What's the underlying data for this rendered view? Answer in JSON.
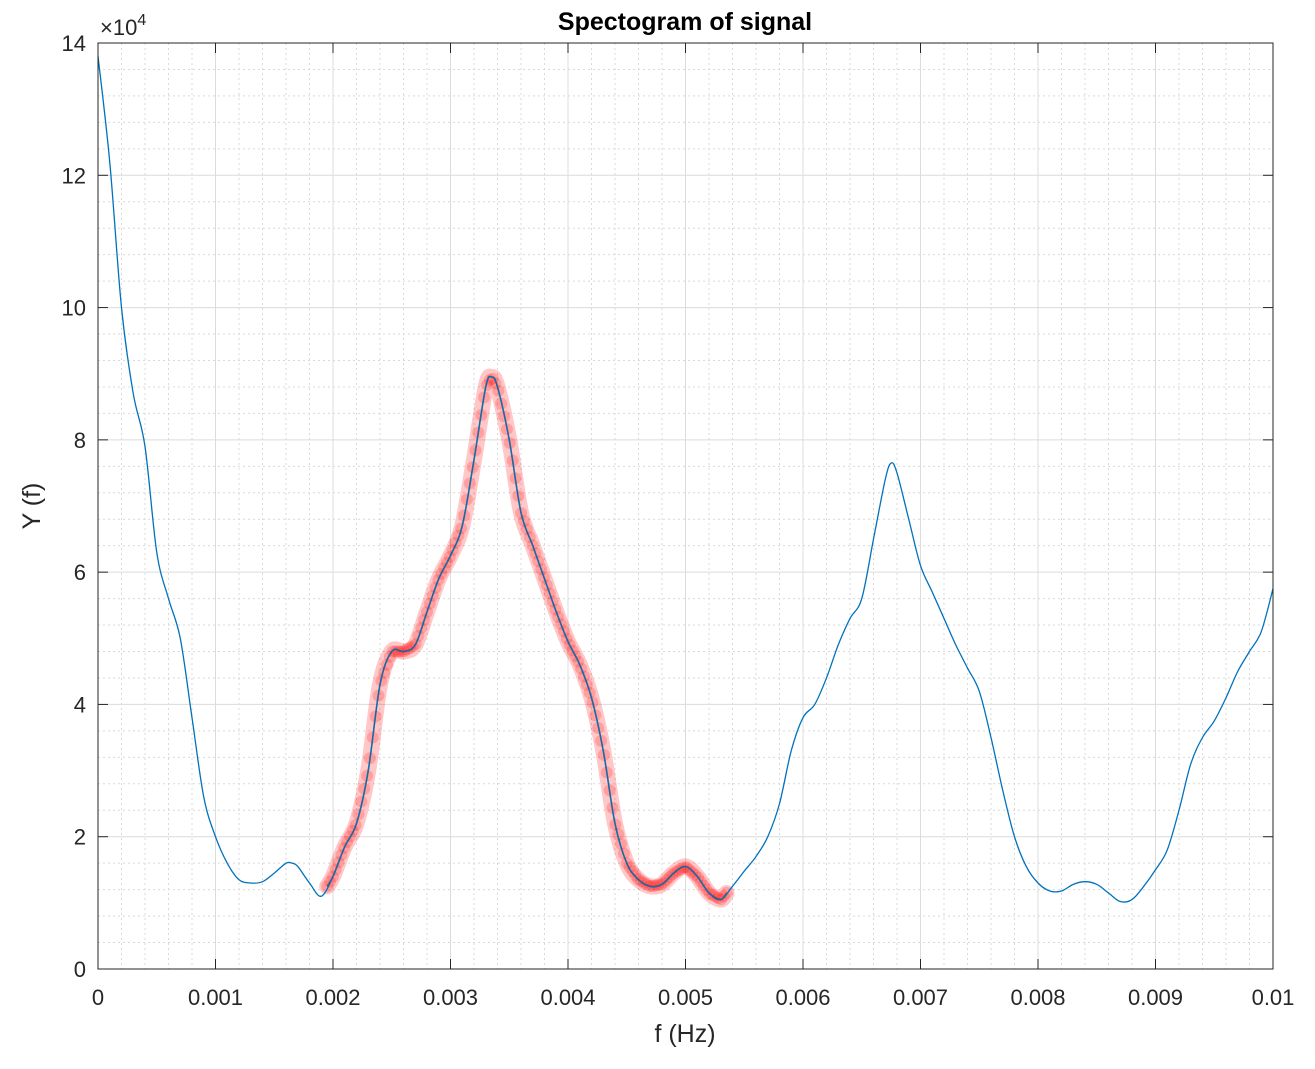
{
  "chart_data": {
    "type": "line",
    "title": "Spectogram of signal",
    "xlabel": "f (Hz)",
    "ylabel": "Y (f)",
    "xlim": [
      0,
      0.01
    ],
    "ylim": [
      0,
      140000
    ],
    "y_exponent_label": "×10",
    "y_exponent_power": "4",
    "grid": true,
    "minor_grid": true,
    "x_ticks": [
      {
        "value": 0,
        "label": "0"
      },
      {
        "value": 0.001,
        "label": "0.001"
      },
      {
        "value": 0.002,
        "label": "0.002"
      },
      {
        "value": 0.003,
        "label": "0.003"
      },
      {
        "value": 0.004,
        "label": "0.004"
      },
      {
        "value": 0.005,
        "label": "0.005"
      },
      {
        "value": 0.006,
        "label": "0.006"
      },
      {
        "value": 0.007,
        "label": "0.007"
      },
      {
        "value": 0.008,
        "label": "0.008"
      },
      {
        "value": 0.009,
        "label": "0.009"
      },
      {
        "value": 0.01,
        "label": "0.01"
      }
    ],
    "y_ticks": [
      {
        "value": 0,
        "label": "0"
      },
      {
        "value": 20000,
        "label": "2"
      },
      {
        "value": 40000,
        "label": "4"
      },
      {
        "value": 60000,
        "label": "6"
      },
      {
        "value": 80000,
        "label": "8"
      },
      {
        "value": 100000,
        "label": "10"
      },
      {
        "value": 120000,
        "label": "12"
      },
      {
        "value": 140000,
        "label": "14"
      }
    ],
    "series": [
      {
        "color": "#0072BD",
        "x": [
          0,
          0.0001,
          0.0002,
          0.0003,
          0.0004,
          0.0005,
          0.0006,
          0.0007,
          0.0008,
          0.0009,
          0.001,
          0.0011,
          0.0012,
          0.0013,
          0.0014,
          0.0015,
          0.0016,
          0.00165,
          0.0017,
          0.0018,
          0.0019,
          0.002,
          0.0021,
          0.0022,
          0.0023,
          0.0024,
          0.0025,
          0.0026,
          0.0027,
          0.0028,
          0.0029,
          0.003,
          0.0031,
          0.0032,
          0.0033,
          0.00335,
          0.0034,
          0.0035,
          0.0036,
          0.0037,
          0.0038,
          0.0039,
          0.004,
          0.0041,
          0.0042,
          0.0043,
          0.0044,
          0.0045,
          0.0046,
          0.0047,
          0.0048,
          0.0049,
          0.005,
          0.0051,
          0.0052,
          0.0053,
          0.0054,
          0.0055,
          0.0056,
          0.0057,
          0.0058,
          0.0059,
          0.006,
          0.0061,
          0.0062,
          0.0063,
          0.0064,
          0.0065,
          0.0066,
          0.0067,
          0.00675,
          0.0068,
          0.0069,
          0.007,
          0.0071,
          0.0072,
          0.0073,
          0.0074,
          0.0075,
          0.0076,
          0.0077,
          0.0078,
          0.0079,
          0.008,
          0.0081,
          0.0082,
          0.0083,
          0.0084,
          0.0085,
          0.0086,
          0.0087,
          0.0088,
          0.0089,
          0.009,
          0.0091,
          0.0092,
          0.0093,
          0.0094,
          0.0095,
          0.0096,
          0.0097,
          0.0098,
          0.0099,
          0.01
        ],
        "y": [
          138000,
          122000,
          100000,
          87000,
          79000,
          63000,
          56000,
          50000,
          38000,
          26000,
          20000,
          16000,
          13500,
          13000,
          13200,
          14500,
          16000,
          16000,
          15500,
          13000,
          11000,
          14000,
          18500,
          22000,
          30000,
          43000,
          48000,
          48000,
          49000,
          54000,
          59000,
          62500,
          67000,
          77000,
          88000,
          89500,
          88000,
          80000,
          69000,
          64000,
          59000,
          54000,
          49500,
          46000,
          41000,
          33000,
          22000,
          16000,
          13500,
          12500,
          12800,
          14500,
          15500,
          14000,
          11500,
          10500,
          12500,
          14800,
          17000,
          20000,
          25000,
          33000,
          38000,
          40000,
          44000,
          49000,
          53000,
          56000,
          65000,
          74000,
          76500,
          75000,
          68000,
          61000,
          57000,
          53000,
          49000,
          45500,
          42000,
          35000,
          27000,
          20000,
          15500,
          13000,
          11800,
          11800,
          12800,
          13200,
          12800,
          11500,
          10200,
          10500,
          12500,
          15000,
          18000,
          24000,
          31000,
          35000,
          37500,
          41000,
          45000,
          48000,
          51000,
          57500
        ]
      }
    ],
    "highlight": {
      "color": "#ff0000",
      "x_range": [
        0.00195,
        0.00535
      ]
    }
  }
}
